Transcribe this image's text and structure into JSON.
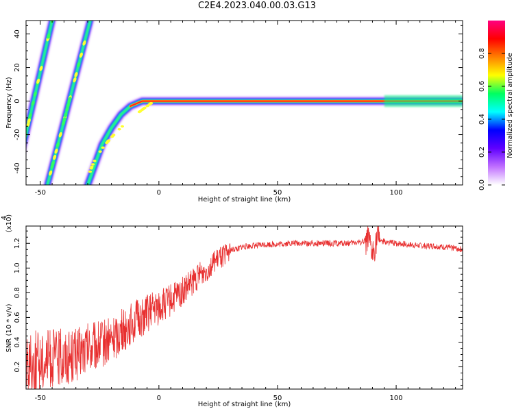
{
  "title": "C2E4.2023.040.00.03.G13",
  "chart_data": [
    {
      "type": "heatmap",
      "xlabel": "Height of straight line (km)",
      "ylabel": "Frequency (Hz)",
      "xlim": [
        -56,
        128
      ],
      "ylim": [
        -50,
        48
      ],
      "x_ticks": [
        -50,
        0,
        50,
        100
      ],
      "y_ticks": [
        -40,
        -20,
        0,
        20,
        40
      ],
      "x_tick_labels": [
        "-50",
        "0",
        "50",
        "100"
      ],
      "y_tick_labels": [
        "-40",
        "-20",
        "0",
        "20",
        "40"
      ],
      "colorbar": {
        "label": "Normalized spectral amplitude",
        "range": [
          0.0,
          1.0
        ],
        "ticks": [
          0.0,
          0.2,
          0.4,
          0.6,
          0.8
        ],
        "tick_labels": [
          "0.0",
          "0.2",
          "0.4",
          "0.6",
          "0.8"
        ],
        "colors": [
          "#ffffff",
          "#c070ff",
          "#6000ff",
          "#0000ff",
          "#00ffff",
          "#00ff60",
          "#ffff00",
          "#ff8000",
          "#ff0000",
          "#ff0080"
        ]
      },
      "features": [
        {
          "name": "",
          "kind": "line",
          "x_start": -61,
          "y_start": -50,
          "x_end": -45,
          "y_end": 48
        },
        {
          "name": "",
          "kind": "line",
          "x_start": -47,
          "y_start": -50,
          "x_end": -29,
          "y_end": 48
        },
        {
          "name": "",
          "kind": "curve",
          "x": [
            -30,
            -27,
            -24,
            -20,
            -16,
            -12,
            -7,
            0,
            10,
            30,
            60,
            90,
            128
          ],
          "y": [
            -50,
            -38,
            -26,
            -16,
            -8,
            -3,
            0,
            0,
            0,
            0,
            0,
            0,
            0
          ]
        }
      ]
    },
    {
      "type": "line",
      "xlabel": "Height of straight line (km)",
      "ylabel": "SNR (10 * v/v)",
      "y_multiplier": "(x10",
      "y_multiplier_exp": "4",
      "xlim": [
        -56,
        128
      ],
      "ylim": [
        0.02,
        1.34
      ],
      "x_ticks": [
        -50,
        0,
        50,
        100
      ],
      "y_ticks": [
        0.2,
        0.4,
        0.6,
        0.8,
        1.0,
        1.2
      ],
      "x_tick_labels": [
        "-50",
        "0",
        "50",
        "100"
      ],
      "y_tick_labels": [
        "0.2",
        "0.4",
        "0.6",
        "0.8",
        "1.0",
        "1.2"
      ],
      "color": "#e83030",
      "series": [
        {
          "name": "",
          "x": [
            -56,
            -50,
            -45,
            -40,
            -35,
            -30,
            -25,
            -20,
            -15,
            -10,
            -5,
            0,
            5,
            10,
            15,
            20,
            25,
            30,
            35,
            40,
            45,
            50,
            55,
            60,
            65,
            70,
            75,
            80,
            85,
            88,
            90,
            92,
            95,
            100,
            105,
            110,
            115,
            120,
            125,
            128
          ],
          "values": [
            0.22,
            0.25,
            0.27,
            0.28,
            0.3,
            0.34,
            0.38,
            0.42,
            0.5,
            0.57,
            0.63,
            0.68,
            0.74,
            0.81,
            0.9,
            0.99,
            1.07,
            1.14,
            1.17,
            1.18,
            1.19,
            1.19,
            1.2,
            1.2,
            1.2,
            1.2,
            1.2,
            1.2,
            1.21,
            1.23,
            1.1,
            1.24,
            1.21,
            1.2,
            1.19,
            1.18,
            1.18,
            1.17,
            1.16,
            1.15
          ]
        }
      ]
    }
  ]
}
